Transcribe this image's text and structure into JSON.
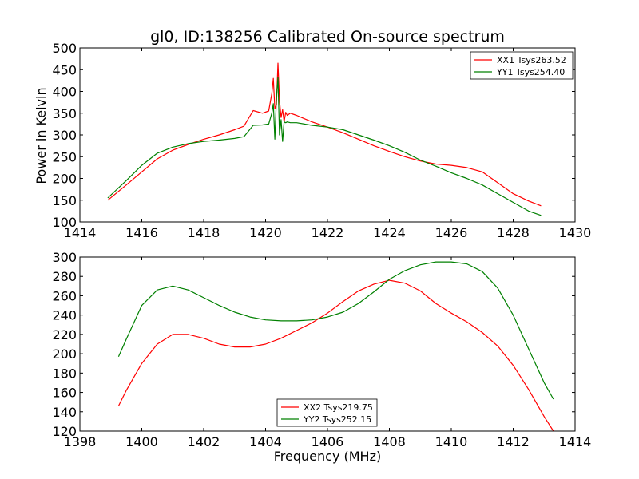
{
  "figure": {
    "title": "gl0, ID:138256 Calibrated On-source spectrum"
  },
  "colors": {
    "red": "#ff0000",
    "green": "#008000",
    "axes": "#000000",
    "background": "#ffffff"
  },
  "chart_data": [
    {
      "type": "line",
      "title": "gl0, ID:138256 Calibrated On-source spectrum",
      "xlabel": "",
      "ylabel": "Power in Kelvin",
      "xlim": [
        1414,
        1430
      ],
      "ylim": [
        100,
        500
      ],
      "xticks": [
        1414,
        1416,
        1418,
        1420,
        1422,
        1424,
        1426,
        1428,
        1430
      ],
      "xtick_labels": [
        "1414",
        "1416",
        "1418",
        "1420",
        "1422",
        "1424",
        "1426",
        "1428",
        "1430"
      ],
      "yticks": [
        100,
        150,
        200,
        250,
        300,
        350,
        400,
        450,
        500
      ],
      "ytick_labels": [
        "100",
        "150",
        "200",
        "250",
        "300",
        "350",
        "400",
        "450",
        "500"
      ],
      "grid": false,
      "legend_position": "top-right",
      "series": [
        {
          "name": "XX1 Tsys263.52",
          "color": "#ff0000",
          "x": [
            1414.9,
            1415.5,
            1416.0,
            1416.5,
            1417.0,
            1417.5,
            1418.0,
            1418.5,
            1419.0,
            1419.3,
            1419.6,
            1419.9,
            1420.1,
            1420.2,
            1420.25,
            1420.3,
            1420.35,
            1420.4,
            1420.45,
            1420.5,
            1420.55,
            1420.6,
            1420.65,
            1420.7,
            1420.8,
            1421.0,
            1421.5,
            1422.0,
            1422.5,
            1423.0,
            1423.5,
            1424.0,
            1424.5,
            1425.0,
            1425.5,
            1426.0,
            1426.5,
            1427.0,
            1427.5,
            1428.0,
            1428.5,
            1428.9
          ],
          "y": [
            150,
            185,
            215,
            245,
            265,
            278,
            290,
            300,
            312,
            320,
            356,
            350,
            355,
            395,
            430,
            360,
            370,
            465,
            380,
            340,
            358,
            330,
            352,
            345,
            350,
            345,
            330,
            318,
            305,
            290,
            275,
            262,
            250,
            240,
            233,
            230,
            225,
            215,
            190,
            165,
            148,
            137
          ]
        },
        {
          "name": "YY1 Tsys254.40",
          "color": "#008000",
          "x": [
            1414.9,
            1415.5,
            1416.0,
            1416.5,
            1417.0,
            1417.5,
            1418.0,
            1418.5,
            1419.0,
            1419.3,
            1419.6,
            1419.9,
            1420.1,
            1420.2,
            1420.25,
            1420.3,
            1420.35,
            1420.4,
            1420.45,
            1420.5,
            1420.55,
            1420.6,
            1420.65,
            1420.7,
            1420.8,
            1421.0,
            1421.5,
            1422.0,
            1422.5,
            1423.0,
            1423.5,
            1424.0,
            1424.5,
            1425.0,
            1425.5,
            1426.0,
            1426.5,
            1427.0,
            1427.5,
            1428.0,
            1428.5,
            1428.9
          ],
          "y": [
            155,
            195,
            230,
            258,
            272,
            280,
            285,
            288,
            292,
            296,
            322,
            323,
            325,
            350,
            372,
            290,
            385,
            432,
            300,
            335,
            285,
            330,
            328,
            330,
            328,
            328,
            322,
            318,
            312,
            300,
            288,
            275,
            260,
            242,
            228,
            213,
            200,
            185,
            165,
            145,
            125,
            115
          ]
        }
      ]
    },
    {
      "type": "line",
      "title": "",
      "xlabel": "Frequency (MHz)",
      "ylabel": "",
      "xlim": [
        1398,
        1414
      ],
      "ylim": [
        120,
        300
      ],
      "xticks": [
        1398,
        1400,
        1402,
        1404,
        1406,
        1408,
        1410,
        1412,
        1414
      ],
      "xtick_labels": [
        "1398",
        "1400",
        "1402",
        "1404",
        "1406",
        "1408",
        "1410",
        "1412",
        "1414"
      ],
      "yticks": [
        120,
        140,
        160,
        180,
        200,
        220,
        240,
        260,
        280,
        300
      ],
      "ytick_labels": [
        "120",
        "140",
        "160",
        "180",
        "200",
        "220",
        "240",
        "260",
        "280",
        "300"
      ],
      "grid": false,
      "legend_position": "bottom-center",
      "series": [
        {
          "name": "XX2 Tsys219.75",
          "color": "#ff0000",
          "x": [
            1399.25,
            1399.5,
            1400.0,
            1400.5,
            1401.0,
            1401.5,
            1402.0,
            1402.5,
            1403.0,
            1403.5,
            1404.0,
            1404.5,
            1405.0,
            1405.5,
            1406.0,
            1406.5,
            1407.0,
            1407.5,
            1408.0,
            1408.5,
            1409.0,
            1409.5,
            1410.0,
            1410.5,
            1411.0,
            1411.5,
            1412.0,
            1412.5,
            1413.0,
            1413.3
          ],
          "y": [
            146,
            162,
            190,
            210,
            220,
            220,
            216,
            210,
            207,
            207,
            210,
            216,
            224,
            232,
            242,
            254,
            265,
            272,
            276,
            273,
            265,
            252,
            242,
            233,
            222,
            208,
            188,
            163,
            135,
            120
          ]
        },
        {
          "name": "YY2 Tsys252.15",
          "color": "#008000",
          "x": [
            1399.25,
            1399.5,
            1400.0,
            1400.5,
            1401.0,
            1401.5,
            1402.0,
            1402.5,
            1403.0,
            1403.5,
            1404.0,
            1404.5,
            1405.0,
            1405.5,
            1406.0,
            1406.5,
            1407.0,
            1407.5,
            1408.0,
            1408.5,
            1409.0,
            1409.5,
            1410.0,
            1410.5,
            1411.0,
            1411.5,
            1412.0,
            1412.5,
            1413.0,
            1413.3
          ],
          "y": [
            197,
            215,
            250,
            266,
            270,
            266,
            258,
            250,
            243,
            238,
            235,
            234,
            234,
            235,
            238,
            243,
            252,
            264,
            277,
            286,
            292,
            295,
            295,
            293,
            285,
            268,
            240,
            205,
            170,
            153
          ]
        }
      ]
    }
  ]
}
